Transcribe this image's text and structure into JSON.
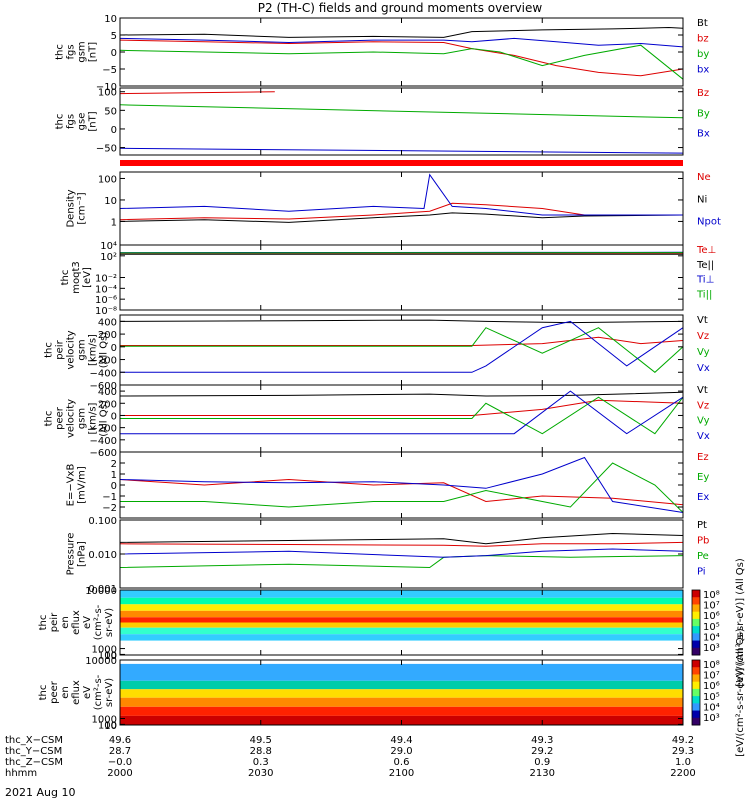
{
  "title": "P2 (TH-C) fields and ground moments overview",
  "date_label": "2021 Aug 10",
  "chart_data": [
    {
      "type": "line",
      "id": "fgs",
      "ylabel_lines": [
        "thc",
        "fgs",
        "gsm",
        "[nT]"
      ],
      "ylim": [
        -10,
        10
      ],
      "ticks": [
        10,
        5,
        0,
        -5,
        -10
      ],
      "tick_labels": [
        "10",
        "5",
        "0",
        "−5",
        "−10"
      ],
      "series": [
        {
          "name": "Bt",
          "color": "#000000",
          "x": [
            0,
            30,
            60,
            90,
            115,
            125,
            150,
            175,
            185,
            195,
            200
          ],
          "y": [
            5,
            5.2,
            4.3,
            4.6,
            4.3,
            6,
            6.5,
            6.8,
            7,
            7.2,
            7
          ]
        },
        {
          "name": "bz",
          "color": "#dd0000",
          "x": [
            0,
            30,
            60,
            90,
            115,
            125,
            140,
            155,
            170,
            185,
            200
          ],
          "y": [
            3.5,
            3,
            2.5,
            3,
            2.8,
            1,
            -1,
            -4,
            -6,
            -7,
            -5
          ]
        },
        {
          "name": "by",
          "color": "#00aa00",
          "x": [
            0,
            30,
            60,
            90,
            115,
            125,
            135,
            150,
            165,
            185,
            200
          ],
          "y": [
            0.5,
            0,
            -0.5,
            0,
            -0.5,
            1,
            0,
            -4,
            -1,
            2,
            -8
          ]
        },
        {
          "name": "bx",
          "color": "#0000cc",
          "x": [
            0,
            30,
            60,
            90,
            115,
            125,
            140,
            155,
            170,
            185,
            200
          ],
          "y": [
            4,
            3.5,
            2.8,
            3.5,
            3.5,
            3,
            4,
            3,
            2,
            2.5,
            1.5
          ]
        }
      ]
    },
    {
      "type": "line",
      "id": "fgs_dsl",
      "ylabel_lines": [
        "thc",
        "fgs",
        "gse",
        "[nT]"
      ],
      "ylim": [
        -70,
        110
      ],
      "ticks": [
        100,
        50,
        0,
        -50
      ],
      "tick_labels": [
        "100",
        "50",
        "0",
        "−50"
      ],
      "series": [
        {
          "name": "Bz",
          "color": "#dd0000",
          "x": [
            0,
            55
          ],
          "y": [
            95,
            100
          ]
        },
        {
          "name": "By",
          "color": "#00aa00",
          "x": [
            0,
            200
          ],
          "y": [
            65,
            30
          ]
        },
        {
          "name": "Bx",
          "color": "#0000cc",
          "x": [
            0,
            200
          ],
          "y": [
            -52,
            -65
          ]
        }
      ]
    },
    {
      "type": "line",
      "id": "density",
      "ylabel_lines": [
        "Density",
        "[cm⁻³]"
      ],
      "log": true,
      "ylim": [
        0.08,
        200
      ],
      "ticks": [
        100,
        10,
        1
      ],
      "tick_labels": [
        "100",
        "10",
        "1"
      ],
      "series": [
        {
          "name": "Ne",
          "color": "#dd0000",
          "x": [
            0,
            30,
            60,
            90,
            110,
            118,
            130,
            150,
            165,
            200
          ],
          "y": [
            1.2,
            1.5,
            1.3,
            2,
            3,
            7,
            6,
            4,
            2,
            2
          ]
        },
        {
          "name": "Ni",
          "color": "#000000",
          "x": [
            0,
            30,
            60,
            90,
            110,
            118,
            130,
            150,
            165,
            200
          ],
          "y": [
            1,
            1.2,
            0.9,
            1.5,
            2,
            2.5,
            2.2,
            1.5,
            1.8,
            2
          ]
        },
        {
          "name": "Npot",
          "color": "#0000cc",
          "x": [
            0,
            30,
            60,
            90,
            108,
            110,
            118,
            130,
            150,
            200
          ],
          "y": [
            4,
            5,
            3,
            5,
            4,
            150,
            5,
            4,
            2,
            2
          ]
        }
      ]
    },
    {
      "type": "line",
      "id": "temperature",
      "ylabel_lines": [
        "thc",
        "moqt3",
        "[eV]"
      ],
      "log": true,
      "ylim": [
        1e-08,
        10000.0
      ],
      "ticks": [
        10000,
        100,
        0.01,
        0.0001,
        1e-06,
        1e-08
      ],
      "tick_labels": [
        "10⁴",
        "10²",
        "10⁻²",
        "10⁻⁴",
        "10⁻⁶",
        "10⁻⁸"
      ],
      "series": [
        {
          "name": "Te⊥",
          "color": "#dd0000",
          "x": [
            0,
            200
          ],
          "y": [
            300,
            300
          ]
        },
        {
          "name": "Te||",
          "color": "#000000",
          "x": [
            0,
            200
          ],
          "y": [
            200,
            200
          ]
        },
        {
          "name": "Ti⊥",
          "color": "#0000cc",
          "x": [
            0,
            200
          ],
          "y": [
            400,
            450
          ]
        },
        {
          "name": "Ti||",
          "color": "#00aa00",
          "x": [
            0,
            200
          ],
          "y": [
            350,
            400
          ]
        }
      ]
    },
    {
      "type": "line",
      "id": "peir_velocity",
      "ylabel_lines": [
        "thc",
        "peir",
        "velocity",
        "gsm",
        "[km/s]",
        "(All Qs)"
      ],
      "ylim": [
        -600,
        500
      ],
      "ticks": [
        400,
        200,
        0,
        -200,
        -400,
        -600
      ],
      "tick_labels": [
        "400",
        "200",
        "0",
        "−200",
        "−400",
        "−600"
      ],
      "series": [
        {
          "name": "Vt",
          "color": "#000000",
          "x": [
            0,
            60,
            110,
            130,
            160,
            200
          ],
          "y": [
            400,
            410,
            420,
            400,
            380,
            400
          ]
        },
        {
          "name": "Vz",
          "color": "#dd0000",
          "x": [
            0,
            125,
            150,
            170,
            185,
            200
          ],
          "y": [
            20,
            20,
            50,
            150,
            50,
            100
          ]
        },
        {
          "name": "Vy",
          "color": "#00aa00",
          "x": [
            0,
            125,
            130,
            150,
            170,
            190,
            200
          ],
          "y": [
            10,
            10,
            300,
            -100,
            300,
            -400,
            0
          ]
        },
        {
          "name": "Vx",
          "color": "#0000cc",
          "x": [
            0,
            125,
            130,
            150,
            160,
            180,
            200
          ],
          "y": [
            -400,
            -400,
            -300,
            300,
            400,
            -300,
            300
          ]
        }
      ]
    },
    {
      "type": "line",
      "id": "peer_velocity",
      "ylabel_lines": [
        "thc",
        "peer",
        "velocity",
        "gsm",
        "[km/s]",
        "(All Qs)"
      ],
      "ylim": [
        -600,
        500
      ],
      "ticks": [
        400,
        200,
        0,
        -200,
        -400,
        -600
      ],
      "tick_labels": [
        "400",
        "200",
        "0",
        "−200",
        "−400",
        "−600"
      ],
      "series": [
        {
          "name": "Vt",
          "color": "#000000",
          "x": [
            0,
            60,
            110,
            130,
            160,
            200
          ],
          "y": [
            320,
            330,
            350,
            320,
            330,
            380
          ]
        },
        {
          "name": "Vz",
          "color": "#dd0000",
          "x": [
            0,
            125,
            150,
            170,
            200
          ],
          "y": [
            0,
            0,
            100,
            250,
            200
          ]
        },
        {
          "name": "Vy",
          "color": "#00aa00",
          "x": [
            0,
            125,
            130,
            150,
            170,
            190,
            200
          ],
          "y": [
            -50,
            -50,
            200,
            -300,
            300,
            -300,
            300
          ]
        },
        {
          "name": "Vx",
          "color": "#0000cc",
          "x": [
            0,
            125,
            140,
            160,
            180,
            200
          ],
          "y": [
            -300,
            -300,
            -300,
            400,
            -300,
            300
          ]
        }
      ]
    },
    {
      "type": "line",
      "id": "efield",
      "ylabel_lines": [
        "E=−VxB",
        "[mV/m]"
      ],
      "ylim": [
        -3,
        3
      ],
      "ticks": [
        2,
        1,
        0,
        -1,
        -2
      ],
      "tick_labels": [
        "2",
        "1",
        "0",
        "−1",
        "−2"
      ],
      "series": [
        {
          "name": "Ez",
          "color": "#dd0000",
          "x": [
            0,
            30,
            60,
            90,
            115,
            130,
            150,
            175,
            200
          ],
          "y": [
            0.5,
            0,
            0.5,
            0,
            0.2,
            -1.5,
            -1,
            -1.2,
            -1.8
          ]
        },
        {
          "name": "Ey",
          "color": "#00aa00",
          "x": [
            0,
            30,
            60,
            90,
            115,
            130,
            160,
            175,
            190,
            200
          ],
          "y": [
            -1.5,
            -1.5,
            -2,
            -1.5,
            -1.5,
            -0.5,
            -2,
            2,
            0,
            -2.5
          ]
        },
        {
          "name": "Ex",
          "color": "#0000cc",
          "x": [
            0,
            30,
            60,
            90,
            115,
            130,
            150,
            165,
            175,
            200
          ],
          "y": [
            0.5,
            0.3,
            0.2,
            0.3,
            0,
            -0.3,
            1,
            2.5,
            -1.5,
            -2.5
          ]
        }
      ]
    },
    {
      "type": "line",
      "id": "pressure",
      "ylabel_lines": [
        "Pressure",
        "[nPa]"
      ],
      "log": true,
      "ylim": [
        0.001,
        0.1
      ],
      "ticks": [
        0.1,
        0.01,
        0.001
      ],
      "tick_labels": [
        "0.100",
        "0.010",
        "0.001"
      ],
      "series": [
        {
          "name": "Pt",
          "color": "#000000",
          "x": [
            0,
            60,
            115,
            130,
            150,
            175,
            200
          ],
          "y": [
            0.022,
            0.025,
            0.028,
            0.02,
            0.03,
            0.04,
            0.035
          ]
        },
        {
          "name": "Pb",
          "color": "#dd0000",
          "x": [
            0,
            60,
            115,
            130,
            150,
            175,
            200
          ],
          "y": [
            0.02,
            0.019,
            0.018,
            0.017,
            0.02,
            0.02,
            0.022
          ]
        },
        {
          "name": "Pe",
          "color": "#00aa00",
          "x": [
            0,
            60,
            110,
            115,
            130,
            160,
            200
          ],
          "y": [
            0.004,
            0.005,
            0.004,
            0.008,
            0.009,
            0.008,
            0.009
          ]
        },
        {
          "name": "Pi",
          "color": "#0000cc",
          "x": [
            0,
            60,
            115,
            130,
            150,
            175,
            200
          ],
          "y": [
            0.01,
            0.012,
            0.008,
            0.009,
            0.012,
            0.014,
            0.012
          ]
        }
      ]
    },
    {
      "type": "heatmap",
      "id": "peir_en_eflux",
      "ylabel_lines": [
        "thc",
        "peir",
        "en",
        "eflux",
        "eV",
        "(cm²-s-",
        "sr-eV)"
      ],
      "ylim": [
        10,
        10000
      ],
      "ticks": [
        10000,
        1000,
        100,
        10
      ],
      "tick_labels": [
        "10000",
        "1000",
        "100",
        "10"
      ],
      "colorbar": {
        "label": "[eV/(cm²-s-sr-eV)] (All Qs)",
        "ticks": [
          "10⁸",
          "10⁷",
          "10⁶",
          "10⁵",
          "10⁴",
          "10³"
        ]
      }
    },
    {
      "type": "heatmap",
      "id": "peer_en_eflux",
      "ylabel_lines": [
        "thc",
        "peer",
        "en",
        "eflux",
        "eV",
        "(cm²-s-",
        "sr-eV)"
      ],
      "ylim": [
        5,
        10000
      ],
      "ticks": [
        10000,
        1000,
        100,
        10
      ],
      "tick_labels": [
        "10000",
        "1000",
        "100",
        "10"
      ],
      "colorbar": {
        "label": "[eV/(cm²-s-sr-eV)] (All Qs)",
        "ticks": [
          "10⁸",
          "10⁷",
          "10⁶",
          "10⁵",
          "10⁴",
          "10³"
        ]
      }
    }
  ],
  "x_axis": {
    "row_labels": [
      "thc_X−CSM",
      "thc_Y−CSM",
      "thc_Z−CSM",
      "hhmm"
    ],
    "columns": [
      {
        "x": 0,
        "vals": [
          "49.6",
          "28.7",
          "−0.0",
          "2000"
        ]
      },
      {
        "x": 50,
        "vals": [
          "49.5",
          "28.8",
          "0.3",
          "2030"
        ]
      },
      {
        "x": 100,
        "vals": [
          "49.4",
          "29.0",
          "0.6",
          "2100"
        ]
      },
      {
        "x": 150,
        "vals": [
          "49.3",
          "29.2",
          "0.9",
          "2130"
        ]
      },
      {
        "x": 200,
        "vals": [
          "49.2",
          "29.3",
          "1.0",
          "2200"
        ]
      }
    ]
  }
}
